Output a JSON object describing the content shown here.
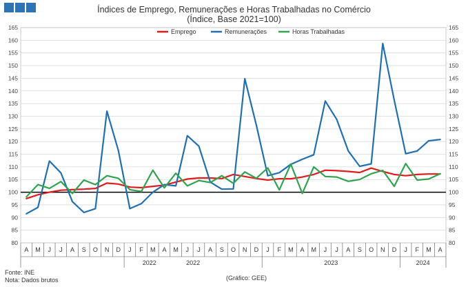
{
  "logo": {
    "name": "gee-logo",
    "color": "#2e74b5"
  },
  "header": {
    "title": "Índices de Emprego, Remunerações e Horas Trabalhadas no Comércio",
    "subtitle": "(Índice, Base 2021=100)"
  },
  "footer": {
    "source": "Fonte: INE",
    "note": "Nota: Dados brutos",
    "credit": "(Gráfico: GEE)"
  },
  "chart_data": {
    "type": "line",
    "categories": [
      "A",
      "M",
      "J",
      "J",
      "A",
      "S",
      "O",
      "N",
      "D",
      "J",
      "F",
      "M",
      "A",
      "M",
      "J",
      "J",
      "A",
      "S",
      "O",
      "N",
      "D",
      "J",
      "F",
      "M",
      "A",
      "M",
      "J",
      "J",
      "A",
      "S",
      "O",
      "N",
      "D",
      "J",
      "F",
      "M",
      "A"
    ],
    "year_labels": [
      {
        "label": "2022",
        "start": 9,
        "end": 20
      },
      {
        "label": "2022",
        "start": 9,
        "end": 20
      },
      {
        "label": "2023",
        "start": 21,
        "end": 32
      },
      {
        "label": "2024",
        "start": 33,
        "end": 36
      }
    ],
    "year_separators": [
      9,
      21,
      33
    ],
    "ylim": [
      80,
      165
    ],
    "yticks": [
      80,
      85,
      90,
      95,
      100,
      105,
      110,
      115,
      120,
      125,
      130,
      135,
      140,
      145,
      150,
      155,
      160,
      165
    ],
    "reference_line": 100,
    "legend_position": "top-center",
    "series": [
      {
        "name": "Emprego",
        "color": "#e31a1c",
        "values": [
          97.5,
          99.0,
          100.0,
          100.8,
          101.0,
          101.2,
          101.5,
          103.6,
          103.2,
          102.0,
          101.8,
          102.3,
          102.8,
          104.0,
          105.2,
          105.6,
          105.6,
          105.4,
          107.0,
          106.2,
          105.4,
          104.8,
          105.3,
          105.3,
          106.0,
          107.0,
          108.7,
          108.5,
          108.2,
          107.8,
          109.5,
          108.2,
          107.0,
          106.5,
          107.0,
          107.2,
          107.2
        ]
      },
      {
        "name": "Remunerações",
        "color": "#1f6fb4",
        "values": [
          91.5,
          94.0,
          112.3,
          107.6,
          96.3,
          92.0,
          93.5,
          132.0,
          116.5,
          93.5,
          95.5,
          100.0,
          103.0,
          102.5,
          122.3,
          118.2,
          104.0,
          101.2,
          101.3,
          144.8,
          126.5,
          106.5,
          107.7,
          111.0,
          113.0,
          114.8,
          136.0,
          128.7,
          116.3,
          110.2,
          111.2,
          158.7,
          136.3,
          115.2,
          116.3,
          120.3,
          120.8
        ]
      },
      {
        "name": "Horas Trabalhadas",
        "color": "#2ea44f",
        "values": [
          98.2,
          103.0,
          101.5,
          104.2,
          99.5,
          104.8,
          103.0,
          106.5,
          105.5,
          101.0,
          100.3,
          108.7,
          101.7,
          107.5,
          102.5,
          104.6,
          103.8,
          106.5,
          103.5,
          108.0,
          105.5,
          109.6,
          100.9,
          111.1,
          99.5,
          110.0,
          106.2,
          106.0,
          104.3,
          105.0,
          107.3,
          108.6,
          102.3,
          111.3,
          104.8,
          105.2,
          107.3
        ]
      }
    ]
  }
}
